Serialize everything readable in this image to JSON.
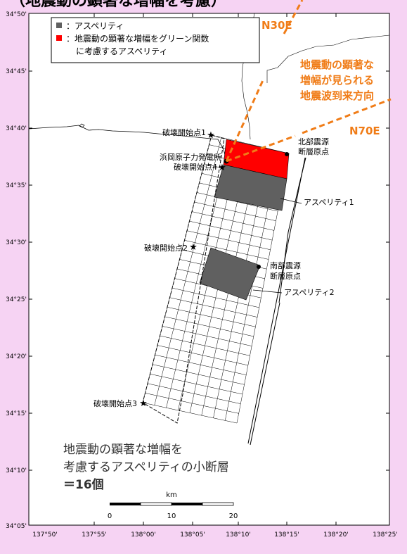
{
  "header": {
    "title": "（地震動の顕著な増幅を考慮）"
  },
  "colors": {
    "page_bg": "#f6d3f3",
    "asperity_gray": "#606060",
    "amplified_red": "#ff0000",
    "arrow_orange": "#f07c17"
  },
  "legend": {
    "items": [
      {
        "label": "：アスペリティ",
        "color": "#606060"
      },
      {
        "label_line1": "：地震動の顕著な増幅をグリーン関数",
        "label_line2": "に考慮するアスペリティ",
        "color": "#ff0000"
      }
    ]
  },
  "axes": {
    "lat_ticks": [
      "34°50'",
      "34°45'",
      "34°40'",
      "34°35'",
      "34°30'",
      "34°25'",
      "34°20'",
      "34°15'",
      "34°10'",
      "34°05'"
    ],
    "lon_ticks": [
      "137°50'",
      "137°55'",
      "138°00'",
      "138°05'",
      "138°10'",
      "138°15'",
      "138°20'",
      "138°25'"
    ]
  },
  "map_labels": {
    "rupture_start_1": "破壊開始点1",
    "rupture_start_2": "破壊開始点2",
    "rupture_start_3": "破壊開始点3",
    "rupture_start_4": "破壊開始点4",
    "nuclear_plant": "浜岡原子力発電所",
    "north_origin_line1": "北部震源",
    "north_origin_line2": "断層原点",
    "south_origin_line1": "南部震源",
    "south_origin_line2": "断層原点",
    "asperity_1": "アスペリティ1",
    "asperity_2": "アスペリティ2"
  },
  "annotations": {
    "direction_n30e": "N30E",
    "direction_n70e": "N70E",
    "arrival_line1": "地震動の顕著な",
    "arrival_line2": "増幅が見られる",
    "arrival_line3": "地震波到来方向",
    "note_line1": "地震動の顕著な増幅を",
    "note_line2": "考慮するアスペリティの小断層",
    "note_line3": "＝16個"
  },
  "scale_bar": {
    "unit": "km",
    "ticks": [
      "0",
      "10",
      "20"
    ]
  }
}
